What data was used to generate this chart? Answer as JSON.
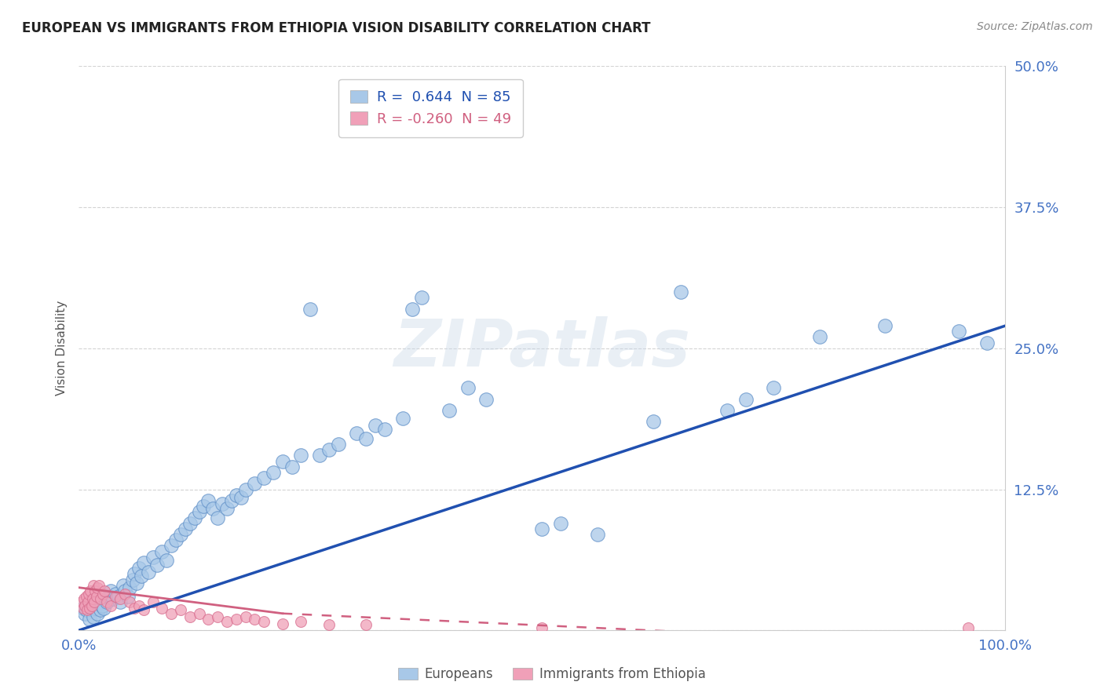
{
  "title": "EUROPEAN VS IMMIGRANTS FROM ETHIOPIA VISION DISABILITY CORRELATION CHART",
  "source": "Source: ZipAtlas.com",
  "ylabel": "Vision Disability",
  "xlabel": "",
  "xlim": [
    0.0,
    1.0
  ],
  "ylim": [
    0.0,
    0.5
  ],
  "yticks": [
    0.0,
    0.125,
    0.25,
    0.375,
    0.5
  ],
  "ytick_labels": [
    "",
    "12.5%",
    "25.0%",
    "37.5%",
    "50.0%"
  ],
  "blue_R": 0.644,
  "blue_N": 85,
  "pink_R": -0.26,
  "pink_N": 49,
  "blue_color": "#a8c8e8",
  "pink_color": "#f0a0b8",
  "blue_edge_color": "#6090c8",
  "pink_edge_color": "#d87090",
  "blue_line_color": "#2050b0",
  "pink_line_color": "#d06080",
  "grid_color": "#c8c8c8",
  "bg_color": "#ffffff",
  "title_color": "#222222",
  "axis_label_color": "#555555",
  "tick_label_color": "#4472c4",
  "watermark": "ZIPatlas",
  "legend_labels": [
    "Europeans",
    "Immigrants from Ethiopia"
  ],
  "blue_line_x0": 0.0,
  "blue_line_y0": 0.0,
  "blue_line_x1": 1.0,
  "blue_line_y1": 0.27,
  "pink_line_solid_x0": 0.0,
  "pink_line_solid_y0": 0.038,
  "pink_line_solid_x1": 0.22,
  "pink_line_solid_y1": 0.015,
  "pink_line_dash_x0": 0.22,
  "pink_line_dash_y0": 0.015,
  "pink_line_dash_x1": 0.75,
  "pink_line_dash_y1": -0.005,
  "blue_pts_x": [
    0.005,
    0.007,
    0.008,
    0.01,
    0.012,
    0.013,
    0.015,
    0.016,
    0.018,
    0.02,
    0.022,
    0.024,
    0.025,
    0.027,
    0.03,
    0.032,
    0.035,
    0.037,
    0.04,
    0.043,
    0.045,
    0.048,
    0.05,
    0.053,
    0.055,
    0.058,
    0.06,
    0.063,
    0.065,
    0.068,
    0.07,
    0.075,
    0.08,
    0.085,
    0.09,
    0.095,
    0.1,
    0.105,
    0.11,
    0.115,
    0.12,
    0.125,
    0.13,
    0.135,
    0.14,
    0.145,
    0.15,
    0.155,
    0.16,
    0.165,
    0.17,
    0.175,
    0.18,
    0.19,
    0.2,
    0.21,
    0.22,
    0.23,
    0.24,
    0.25,
    0.26,
    0.27,
    0.28,
    0.3,
    0.31,
    0.32,
    0.33,
    0.35,
    0.36,
    0.37,
    0.4,
    0.42,
    0.44,
    0.5,
    0.52,
    0.56,
    0.62,
    0.65,
    0.7,
    0.72,
    0.75,
    0.8,
    0.87,
    0.95,
    0.98
  ],
  "blue_pts_y": [
    0.02,
    0.015,
    0.018,
    0.022,
    0.01,
    0.025,
    0.018,
    0.012,
    0.02,
    0.015,
    0.025,
    0.018,
    0.022,
    0.02,
    0.025,
    0.03,
    0.035,
    0.028,
    0.032,
    0.03,
    0.025,
    0.04,
    0.035,
    0.03,
    0.038,
    0.045,
    0.05,
    0.042,
    0.055,
    0.048,
    0.06,
    0.052,
    0.065,
    0.058,
    0.07,
    0.062,
    0.075,
    0.08,
    0.085,
    0.09,
    0.095,
    0.1,
    0.105,
    0.11,
    0.115,
    0.108,
    0.1,
    0.112,
    0.108,
    0.115,
    0.12,
    0.118,
    0.125,
    0.13,
    0.135,
    0.14,
    0.15,
    0.145,
    0.155,
    0.285,
    0.155,
    0.16,
    0.165,
    0.175,
    0.17,
    0.182,
    0.178,
    0.188,
    0.285,
    0.295,
    0.195,
    0.215,
    0.205,
    0.09,
    0.095,
    0.085,
    0.185,
    0.3,
    0.195,
    0.205,
    0.215,
    0.26,
    0.27,
    0.265,
    0.255
  ],
  "pink_pts_x": [
    0.003,
    0.005,
    0.006,
    0.007,
    0.008,
    0.009,
    0.01,
    0.011,
    0.012,
    0.013,
    0.014,
    0.015,
    0.016,
    0.017,
    0.018,
    0.019,
    0.02,
    0.022,
    0.024,
    0.026,
    0.028,
    0.03,
    0.035,
    0.04,
    0.045,
    0.05,
    0.055,
    0.06,
    0.065,
    0.07,
    0.08,
    0.09,
    0.1,
    0.11,
    0.12,
    0.13,
    0.14,
    0.15,
    0.16,
    0.17,
    0.18,
    0.19,
    0.2,
    0.22,
    0.24,
    0.27,
    0.31,
    0.5,
    0.96
  ],
  "pink_pts_y": [
    0.025,
    0.02,
    0.028,
    0.022,
    0.03,
    0.018,
    0.025,
    0.032,
    0.02,
    0.035,
    0.022,
    0.028,
    0.04,
    0.025,
    0.035,
    0.03,
    0.038,
    0.04,
    0.028,
    0.032,
    0.035,
    0.025,
    0.022,
    0.03,
    0.028,
    0.032,
    0.025,
    0.02,
    0.022,
    0.018,
    0.025,
    0.02,
    0.015,
    0.018,
    0.012,
    0.015,
    0.01,
    0.012,
    0.008,
    0.01,
    0.012,
    0.01,
    0.008,
    0.006,
    0.008,
    0.005,
    0.005,
    0.002,
    0.002
  ]
}
